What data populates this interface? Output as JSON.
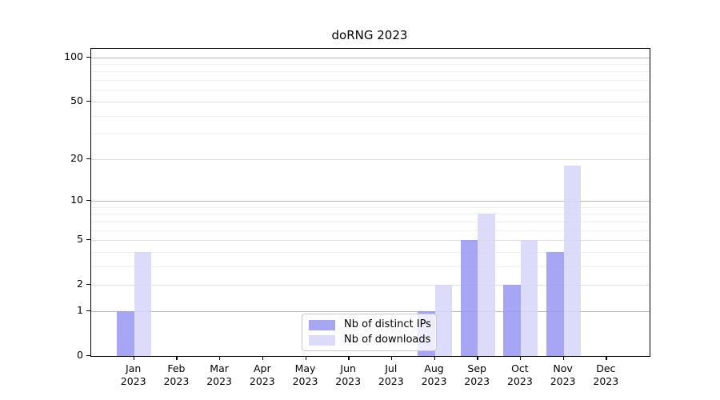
{
  "title": "doRNG 2023",
  "chart_data": {
    "type": "bar",
    "title": "doRNG 2023",
    "categories": [
      "Jan 2023",
      "Feb 2023",
      "Mar 2023",
      "Apr 2023",
      "May 2023",
      "Jun 2023",
      "Jul 2023",
      "Aug 2023",
      "Sep 2023",
      "Oct 2023",
      "Nov 2023",
      "Dec 2023"
    ],
    "series": [
      {
        "name": "Nb of distinct IPs",
        "color": "#a6a6f2",
        "color_rgba": "rgba(151,151,242,0.85)",
        "values": [
          1,
          0,
          0,
          0,
          0,
          0,
          0,
          1,
          5,
          2,
          4,
          0
        ]
      },
      {
        "name": "Nb of downloads",
        "color": "#dcdcfa",
        "color_rgba": "rgba(214,214,249,0.85)",
        "values": [
          4,
          0,
          0,
          0,
          0,
          0,
          0,
          2,
          8,
          5,
          18,
          0
        ]
      }
    ],
    "xlabel": "",
    "ylabel": "",
    "yscale": "log1p",
    "ylim": [
      0,
      114
    ],
    "ytick_values": [
      0,
      1,
      2,
      5,
      10,
      20,
      50,
      100
    ],
    "ytick_labels": [
      "0",
      "1",
      "2",
      "5",
      "10",
      "20",
      "50",
      "100"
    ],
    "minor_gridline_values": [
      3,
      4,
      6,
      7,
      8,
      9,
      30,
      40,
      60,
      70,
      80,
      90
    ],
    "grid": "on",
    "legend_position": "lower-center-inside"
  }
}
